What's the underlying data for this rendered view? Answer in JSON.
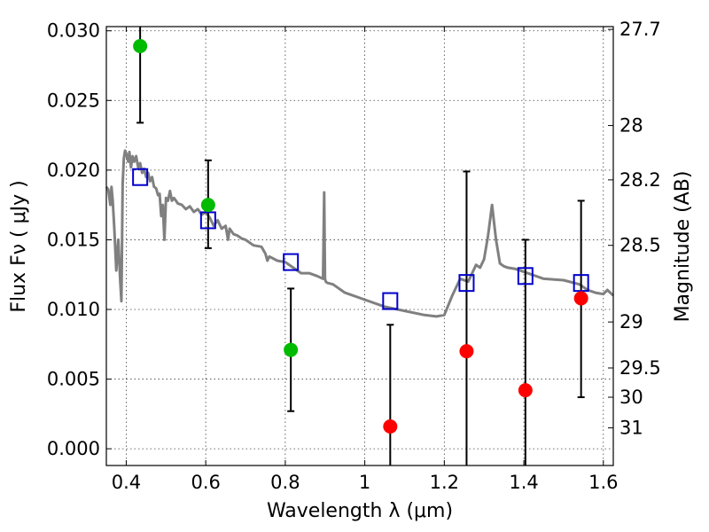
{
  "chart_data": {
    "type": "scatter",
    "xlabel": "Wavelength  λ (μm)",
    "ylabel": "Flux  Fν  ( μJy )",
    "y2label": "Magnitude (AB)",
    "xlim": [
      0.35,
      1.625
    ],
    "ylim": [
      -0.0012,
      0.0303
    ],
    "grid": true,
    "x_ticks": [
      0.4,
      0.6,
      0.8,
      1.0,
      1.2,
      1.4,
      1.6
    ],
    "x_tick_labels": [
      "0.4",
      "0.6",
      "0.8",
      "1",
      "1.2",
      "1.4",
      "1.6"
    ],
    "y_ticks": [
      0.0,
      0.005,
      0.01,
      0.015,
      0.02,
      0.025,
      0.03
    ],
    "y_tick_labels": [
      "0.000",
      "0.005",
      "0.010",
      "0.015",
      "0.020",
      "0.025",
      "0.030"
    ],
    "y2_ticks": [
      {
        "label": "27.7",
        "flux": 0.0301
      },
      {
        "label": "28",
        "flux": 0.0232
      },
      {
        "label": "28.2",
        "flux": 0.0193
      },
      {
        "label": "28.5",
        "flux": 0.0146
      },
      {
        "label": "29",
        "flux": 0.0091
      },
      {
        "label": "29.5",
        "flux": 0.0058
      },
      {
        "label": "30",
        "flux": 0.0037
      },
      {
        "label": "31",
        "flux": 0.0015
      }
    ],
    "observed_detections": {
      "color": "#00bb00",
      "points": [
        {
          "x": 0.435,
          "y": 0.0289,
          "err_low": 0.0234,
          "err_high": 0.0303
        },
        {
          "x": 0.606,
          "y": 0.0175,
          "err_low": 0.0144,
          "err_high": 0.0207
        },
        {
          "x": 0.814,
          "y": 0.0071,
          "err_low": 0.0027,
          "err_high": 0.0115
        }
      ]
    },
    "observed_upper": {
      "color": "#ff0000",
      "points": [
        {
          "x": 1.064,
          "y": 0.0016,
          "err_low": -0.0012,
          "err_high": 0.0089
        },
        {
          "x": 1.256,
          "y": 0.007,
          "err_low": -0.0012,
          "err_high": 0.0199
        },
        {
          "x": 1.404,
          "y": 0.0042,
          "err_low": -0.0012,
          "err_high": 0.015
        },
        {
          "x": 1.544,
          "y": 0.0108,
          "err_low": 0.0037,
          "err_high": 0.0178
        }
      ]
    },
    "model_photometry": {
      "color": "#0000cc",
      "points": [
        {
          "x": 0.435,
          "y": 0.0195
        },
        {
          "x": 0.606,
          "y": 0.0164
        },
        {
          "x": 0.814,
          "y": 0.0134
        },
        {
          "x": 1.064,
          "y": 0.0106
        },
        {
          "x": 1.256,
          "y": 0.0119
        },
        {
          "x": 1.404,
          "y": 0.0124
        },
        {
          "x": 1.544,
          "y": 0.0119
        }
      ]
    },
    "model_spectrum": {
      "color": "#808080",
      "x": [
        0.35,
        0.355,
        0.36,
        0.363,
        0.366,
        0.37,
        0.375,
        0.38,
        0.385,
        0.388,
        0.391,
        0.394,
        0.397,
        0.4,
        0.405,
        0.408,
        0.412,
        0.416,
        0.42,
        0.425,
        0.43,
        0.435,
        0.44,
        0.445,
        0.45,
        0.455,
        0.46,
        0.465,
        0.47,
        0.475,
        0.48,
        0.484,
        0.488,
        0.492,
        0.496,
        0.5,
        0.505,
        0.51,
        0.515,
        0.52,
        0.53,
        0.54,
        0.55,
        0.56,
        0.57,
        0.58,
        0.59,
        0.6,
        0.61,
        0.62,
        0.63,
        0.64,
        0.65,
        0.656,
        0.66,
        0.665,
        0.67,
        0.68,
        0.69,
        0.7,
        0.72,
        0.74,
        0.75,
        0.755,
        0.76,
        0.78,
        0.8,
        0.82,
        0.84,
        0.86,
        0.88,
        0.895,
        0.898,
        0.9,
        0.902,
        0.906,
        0.92,
        0.95,
        1.0,
        1.05,
        1.1,
        1.15,
        1.18,
        1.2,
        1.22,
        1.24,
        1.26,
        1.28,
        1.29,
        1.3,
        1.31,
        1.32,
        1.33,
        1.34,
        1.35,
        1.36,
        1.38,
        1.4,
        1.42,
        1.45,
        1.5,
        1.54,
        1.56,
        1.58,
        1.6,
        1.61,
        1.625
      ],
      "y": [
        0.0188,
        0.0186,
        0.0175,
        0.0188,
        0.0178,
        0.0158,
        0.0128,
        0.015,
        0.012,
        0.0106,
        0.019,
        0.0208,
        0.0214,
        0.0212,
        0.0206,
        0.0213,
        0.0202,
        0.021,
        0.0206,
        0.021,
        0.0202,
        0.0205,
        0.0198,
        0.0201,
        0.0195,
        0.0198,
        0.0192,
        0.0195,
        0.0188,
        0.0187,
        0.0182,
        0.0183,
        0.0167,
        0.0175,
        0.015,
        0.018,
        0.0178,
        0.0185,
        0.0178,
        0.018,
        0.0176,
        0.0175,
        0.0172,
        0.0174,
        0.017,
        0.0172,
        0.0168,
        0.017,
        0.0166,
        0.016,
        0.0164,
        0.0158,
        0.016,
        0.015,
        0.0158,
        0.0156,
        0.0154,
        0.0153,
        0.0151,
        0.015,
        0.0146,
        0.0145,
        0.014,
        0.0135,
        0.0138,
        0.0135,
        0.0134,
        0.013,
        0.0126,
        0.0126,
        0.0124,
        0.0122,
        0.0184,
        0.0122,
        0.012,
        0.0119,
        0.0118,
        0.0112,
        0.0107,
        0.0102,
        0.0099,
        0.0096,
        0.0095,
        0.0096,
        0.011,
        0.0122,
        0.012,
        0.0132,
        0.013,
        0.0136,
        0.0153,
        0.0175,
        0.015,
        0.0133,
        0.0131,
        0.013,
        0.0129,
        0.0127,
        0.0125,
        0.0122,
        0.0121,
        0.0118,
        0.0114,
        0.0112,
        0.0111,
        0.0114,
        0.011
      ]
    }
  }
}
